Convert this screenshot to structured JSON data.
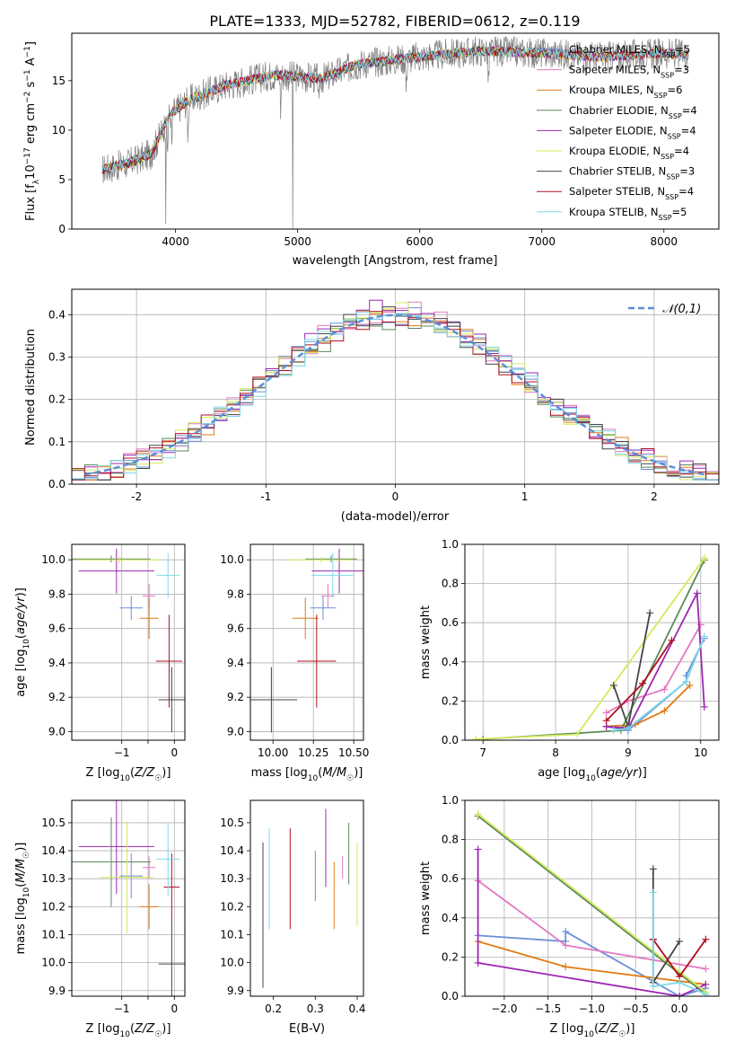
{
  "figure_title": "PLATE=1333, MJD=52782, FIBERID=0612, z=0.119",
  "models": [
    {
      "name": "Chabrier MILES",
      "nssp": "5",
      "color": "#6a8fd8"
    },
    {
      "name": "Salpeter MILES",
      "nssp": "3",
      "color": "#e377c2"
    },
    {
      "name": "Kroupa MILES",
      "nssp": "6",
      "color": "#e07b16"
    },
    {
      "name": "Chabrier ELODIE",
      "nssp": "4",
      "color": "#5a8a5a"
    },
    {
      "name": "Salpeter ELODIE",
      "nssp": "4",
      "color": "#9c27b0"
    },
    {
      "name": "Kroupa ELODIE",
      "nssp": "4",
      "color": "#d4ea5a"
    },
    {
      "name": "Chabrier STELIB",
      "nssp": "3",
      "color": "#444444"
    },
    {
      "name": "Salpeter STELIB",
      "nssp": "4",
      "color": "#b01020"
    },
    {
      "name": "Kroupa STELIB",
      "nssp": "5",
      "color": "#7fd8e8"
    }
  ],
  "legend_suffix": "N",
  "legend_sub": "SSP",
  "chart_data": [
    {
      "id": "spectrum",
      "type": "line",
      "xlabel": "wavelength [Angstrom, rest frame]",
      "ylabel": "Flux [f_λ 10^-17 erg cm^-2 s^-1 A^-1]",
      "xlim": [
        3150,
        8450
      ],
      "ylim": [
        0,
        19.8
      ],
      "xticks": [
        4000,
        5000,
        6000,
        7000,
        8000
      ],
      "yticks": [
        0,
        5,
        10,
        15
      ],
      "grid": false,
      "legend": "top-right",
      "continuum_knots": [
        [
          3400,
          6.0
        ],
        [
          3600,
          6.6
        ],
        [
          3800,
          7.6
        ],
        [
          3950,
          11.5
        ],
        [
          4100,
          13.0
        ],
        [
          4400,
          14.5
        ],
        [
          4800,
          15.6
        ],
        [
          5200,
          15.2
        ],
        [
          5500,
          16.7
        ],
        [
          6000,
          17.4
        ],
        [
          6500,
          18.0
        ],
        [
          7000,
          17.8
        ],
        [
          7500,
          17.4
        ],
        [
          8000,
          17.8
        ],
        [
          8200,
          17.6
        ]
      ]
    },
    {
      "id": "residuals",
      "type": "line",
      "xlabel": "(data-model)/error",
      "ylabel": "Normed distribution",
      "xlim": [
        -2.5,
        2.5
      ],
      "ylim": [
        0,
        0.46
      ],
      "xticks": [
        -2,
        -1,
        0,
        1,
        2
      ],
      "yticks": [
        0.0,
        0.1,
        0.2,
        0.3,
        0.4
      ],
      "grid": true,
      "legend": "top-right",
      "reference_label": "𝒩(0,1)",
      "reference_color": "#5b8fd9",
      "bin_width": 0.1,
      "series_peak": [
        0.4,
        0.41,
        0.4,
        0.39,
        0.42,
        0.41,
        0.4,
        0.4,
        0.4
      ]
    },
    {
      "id": "age_vs_Z",
      "type": "scatter",
      "xlabel": "Z [log10(Z/Z☉)]",
      "ylabel": "age [log10(age/yr)]",
      "xlim": [
        -1.95,
        0.2
      ],
      "ylim": [
        8.95,
        10.09
      ],
      "xticks": [
        -1,
        -0.5,
        0
      ],
      "xtick_labels": [
        "−1",
        "",
        "0"
      ],
      "yticks": [
        9.0,
        9.2,
        9.4,
        9.6,
        9.8,
        10.0
      ],
      "grid": true,
      "points": [
        {
          "x": -0.82,
          "xe": 0.22,
          "y": 9.72,
          "ye": 0.07
        },
        {
          "x": -0.48,
          "xe": 0.12,
          "y": 9.79,
          "ye": 0.07
        },
        {
          "x": -0.48,
          "xe": 0.18,
          "y": 9.66,
          "ye": 0.12
        },
        {
          "x": -1.2,
          "xe": 0.75,
          "y": 10.005,
          "ye": 0.02
        },
        {
          "x": -1.1,
          "xe": 0.72,
          "y": 9.935,
          "ye": 0.13
        },
        {
          "x": -1.05,
          "xe": 0.8,
          "y": 10.0,
          "ye": 0.02
        },
        {
          "x": -0.05,
          "xe": 0.25,
          "y": 9.185,
          "ye": 0.19
        },
        {
          "x": -0.1,
          "xe": 0.25,
          "y": 9.41,
          "ye": 0.27
        },
        {
          "x": -0.12,
          "xe": 0.22,
          "y": 9.91,
          "ye": 0.13
        }
      ]
    },
    {
      "id": "age_vs_mass",
      "type": "scatter",
      "xlabel": "mass [log10(M/M☉)]",
      "ylabel": "",
      "xlim": [
        9.86,
        10.56
      ],
      "ylim": [
        8.95,
        10.09
      ],
      "xticks": [
        10.0,
        10.25,
        10.5
      ],
      "xtick_labels": [
        "10.00",
        "10.25",
        "10.50"
      ],
      "yticks": [
        9.0,
        9.2,
        9.4,
        9.6,
        9.8,
        10.0
      ],
      "grid": true,
      "points": [
        {
          "x": 10.31,
          "xe": 0.08,
          "y": 9.72,
          "ye": 0.07
        },
        {
          "x": 10.34,
          "xe": 0.04,
          "y": 9.79,
          "ye": 0.07
        },
        {
          "x": 10.2,
          "xe": 0.08,
          "y": 9.66,
          "ye": 0.12
        },
        {
          "x": 10.36,
          "xe": 0.16,
          "y": 10.005,
          "ye": 0.02
        },
        {
          "x": 10.41,
          "xe": 0.17,
          "y": 9.935,
          "ye": 0.13
        },
        {
          "x": 10.3,
          "xe": 0.2,
          "y": 10.0,
          "ye": 0.02
        },
        {
          "x": 9.99,
          "xe": 0.16,
          "y": 9.185,
          "ye": 0.19
        },
        {
          "x": 10.27,
          "xe": 0.12,
          "y": 9.41,
          "ye": 0.27
        },
        {
          "x": 10.37,
          "xe": 0.13,
          "y": 9.91,
          "ye": 0.13
        }
      ]
    },
    {
      "id": "weight_vs_age",
      "type": "line",
      "xlabel": "age [log10(age/yr)]",
      "ylabel": "mass weight",
      "xlim": [
        6.75,
        10.25
      ],
      "ylim": [
        0,
        1.0
      ],
      "xticks": [
        7,
        8,
        9,
        10
      ],
      "yticks": [
        0.0,
        0.2,
        0.4,
        0.6,
        0.8,
        1.0
      ],
      "grid": true,
      "series": [
        [
          [
            8.7,
            0.07
          ],
          [
            9.0,
            0.05
          ],
          [
            9.8,
            0.3
          ],
          [
            9.8,
            0.33
          ],
          [
            10.05,
            0.52
          ]
        ],
        [
          [
            8.7,
            0.14
          ],
          [
            9.0,
            0.2
          ],
          [
            9.5,
            0.26
          ],
          [
            10.0,
            0.59
          ]
        ],
        [
          [
            8.7,
            0.07
          ],
          [
            9.1,
            0.08
          ],
          [
            9.5,
            0.15
          ],
          [
            9.85,
            0.28
          ]
        ],
        [
          [
            7.0,
            0.005
          ],
          [
            8.9,
            0.05
          ],
          [
            10.05,
            0.92
          ]
        ],
        [
          [
            8.7,
            0.07
          ],
          [
            9.0,
            0.06
          ],
          [
            9.95,
            0.75
          ],
          [
            10.05,
            0.17
          ]
        ],
        [
          [
            6.9,
            0.005
          ],
          [
            8.3,
            0.03
          ],
          [
            10.05,
            0.93
          ]
        ],
        [
          [
            8.8,
            0.28
          ],
          [
            9.0,
            0.07
          ],
          [
            9.3,
            0.65
          ]
        ],
        [
          [
            8.7,
            0.1
          ],
          [
            9.2,
            0.29
          ],
          [
            9.6,
            0.51
          ]
        ],
        [
          [
            8.8,
            0.05
          ],
          [
            9.0,
            0.06
          ],
          [
            9.8,
            0.3
          ],
          [
            10.05,
            0.53
          ]
        ]
      ]
    },
    {
      "id": "mass_vs_Z",
      "type": "scatter",
      "xlabel": "Z [log10(Z/Z☉)]",
      "ylabel": "mass [log10(M/M☉)]",
      "xlim": [
        -1.95,
        0.2
      ],
      "ylim": [
        9.88,
        10.58
      ],
      "xticks": [
        -1,
        -0.5,
        0
      ],
      "xtick_labels": [
        "−1",
        "",
        "0"
      ],
      "yticks": [
        9.9,
        10.0,
        10.1,
        10.2,
        10.3,
        10.4,
        10.5
      ],
      "grid": true,
      "points": [
        {
          "x": -0.82,
          "xe": 0.22,
          "y": 10.31,
          "ye": 0.08
        },
        {
          "x": -0.48,
          "xe": 0.12,
          "y": 10.34,
          "ye": 0.04
        },
        {
          "x": -0.48,
          "xe": 0.18,
          "y": 10.2,
          "ye": 0.08
        },
        {
          "x": -1.2,
          "xe": 0.75,
          "y": 10.36,
          "ye": 0.16
        },
        {
          "x": -1.1,
          "xe": 0.72,
          "y": 10.415,
          "ye": 0.17
        },
        {
          "x": -0.9,
          "xe": 0.5,
          "y": 10.305,
          "ye": 0.2
        },
        {
          "x": -0.05,
          "xe": 0.25,
          "y": 9.995,
          "ye": 0.16
        },
        {
          "x": -0.05,
          "xe": 0.15,
          "y": 10.27,
          "ye": 0.12
        },
        {
          "x": -0.12,
          "xe": 0.22,
          "y": 10.37,
          "ye": 0.13
        }
      ]
    },
    {
      "id": "mass_vs_ebv",
      "type": "scatter",
      "xlabel": "E(B-V)",
      "ylabel": "",
      "xlim": [
        0.145,
        0.415
      ],
      "ylim": [
        9.88,
        10.58
      ],
      "xticks": [
        0.2,
        0.3,
        0.4
      ],
      "xtick_labels": [
        "0.2",
        "0.3",
        "0.4"
      ],
      "yticks": [
        9.9,
        10.0,
        10.1,
        10.2,
        10.3,
        10.4,
        10.5
      ],
      "grid": false,
      "points": [
        {
          "x": 0.3,
          "y": 10.31,
          "ye": 0.09
        },
        {
          "x": 0.365,
          "y": 10.34,
          "ye": 0.04
        },
        {
          "x": 0.345,
          "y": 10.24,
          "ye": 0.12
        },
        {
          "x": 0.38,
          "y": 10.39,
          "ye": 0.11
        },
        {
          "x": 0.325,
          "y": 10.41,
          "ye": 0.14
        },
        {
          "x": 0.4,
          "y": 10.28,
          "ye": 0.15
        },
        {
          "x": 0.175,
          "y": 10.17,
          "ye": 0.26
        },
        {
          "x": 0.24,
          "y": 10.3,
          "ye": 0.18
        },
        {
          "x": 0.19,
          "y": 10.3,
          "ye": 0.18
        }
      ]
    },
    {
      "id": "weight_vs_Z",
      "type": "line",
      "xlabel": "Z [log10(Z/Z☉)]",
      "ylabel": "mass weight",
      "xlim": [
        -2.45,
        0.45
      ],
      "ylim": [
        0,
        1.0
      ],
      "xticks": [
        -2.0,
        -1.5,
        -1.0,
        -0.5,
        0.0
      ],
      "xtick_labels": [
        "−2.0",
        "−1.5",
        "−1.0",
        "−0.5",
        "0.0"
      ],
      "yticks": [
        0.0,
        0.2,
        0.4,
        0.6,
        0.8,
        1.0
      ],
      "grid": true,
      "series": [
        [
          [
            -2.3,
            0.31
          ],
          [
            -1.3,
            0.28
          ],
          [
            -1.3,
            0.33
          ],
          [
            0,
            0
          ],
          [
            0.3,
            0.04
          ]
        ],
        [
          [
            -2.3,
            0.59
          ],
          [
            -1.3,
            0.26
          ],
          [
            0.3,
            0.14
          ]
        ],
        [
          [
            -2.3,
            0.28
          ],
          [
            -1.3,
            0.15
          ],
          [
            0.3,
            0.06
          ]
        ],
        [
          [
            -2.3,
            0.92
          ],
          [
            0.3,
            0.01
          ]
        ],
        [
          [
            -2.3,
            0.75
          ],
          [
            -2.3,
            0.17
          ],
          [
            0,
            0
          ],
          [
            0.3,
            0.06
          ]
        ],
        [
          [
            -2.3,
            0.93
          ],
          [
            0.3,
            0.02
          ]
        ],
        [
          [
            -0.3,
            0.65
          ],
          [
            -0.3,
            0.07
          ],
          [
            0,
            0.28
          ]
        ],
        [
          [
            -0.3,
            0.29
          ],
          [
            -0.3,
            0.29
          ],
          [
            0,
            0.1
          ],
          [
            0.3,
            0.29
          ]
        ],
        [
          [
            -0.3,
            0.53
          ],
          [
            -0.3,
            0.05
          ],
          [
            0,
            0.07
          ],
          [
            0.3,
            0.01
          ]
        ]
      ]
    }
  ]
}
